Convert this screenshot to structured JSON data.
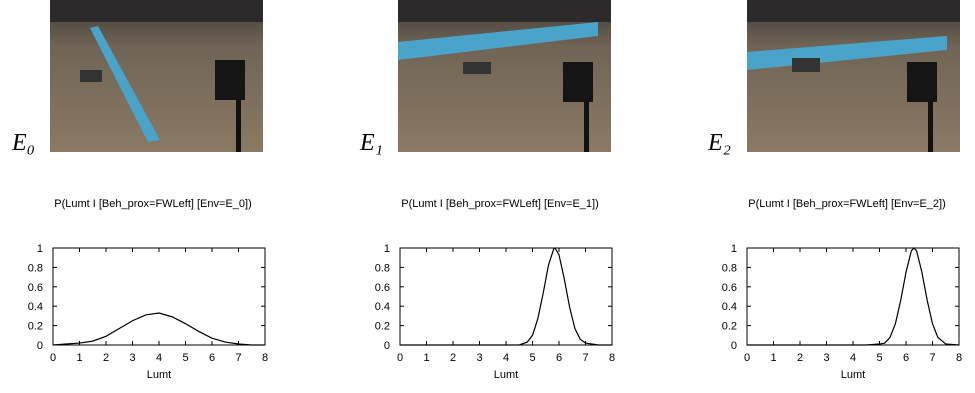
{
  "chart_data": [
    {
      "type": "line",
      "image_label": "E₀",
      "title": "P(Lumt I [Beh_prox=FWLeft] [Env=E_0])",
      "xlabel": "Lumt",
      "x": [
        0,
        0.5,
        1,
        1.5,
        2,
        2.5,
        3,
        3.5,
        4,
        4.5,
        5,
        5.5,
        6,
        6.5,
        7,
        7.5,
        8
      ],
      "values": [
        0,
        0.01,
        0.02,
        0.04,
        0.09,
        0.17,
        0.25,
        0.31,
        0.33,
        0.29,
        0.22,
        0.14,
        0.07,
        0.03,
        0.01,
        0,
        0
      ],
      "color": "#000000",
      "xlim": [
        0,
        8
      ],
      "ylim": [
        0,
        1
      ],
      "xticks": [
        0,
        1,
        2,
        3,
        4,
        5,
        6,
        7,
        8
      ],
      "yticks": [
        0,
        0.2,
        0.4,
        0.6,
        0.8,
        1
      ]
    },
    {
      "type": "line",
      "image_label": "E₁",
      "title": "P(Lumt I [Beh_prox=FWLeft] [Env=E_1])",
      "xlabel": "Lumt",
      "x": [
        0,
        4,
        4.5,
        4.8,
        5,
        5.2,
        5.4,
        5.6,
        5.8,
        5.85,
        6,
        6.2,
        6.4,
        6.6,
        6.8,
        7,
        7.5,
        8
      ],
      "values": [
        0,
        0,
        0,
        0.03,
        0.1,
        0.27,
        0.53,
        0.82,
        0.99,
        1,
        0.93,
        0.68,
        0.39,
        0.17,
        0.06,
        0.02,
        0,
        0
      ],
      "color": "#000000",
      "xlim": [
        0,
        8
      ],
      "ylim": [
        0,
        1
      ],
      "xticks": [
        0,
        1,
        2,
        3,
        4,
        5,
        6,
        7,
        8
      ],
      "yticks": [
        0,
        0.2,
        0.4,
        0.6,
        0.8,
        1
      ]
    },
    {
      "type": "line",
      "image_label": "E₂",
      "title": "P(Lumt I [Beh_prox=FWLeft] [Env=E_2])",
      "xlabel": "Lumt",
      "x": [
        0,
        4.5,
        5,
        5.2,
        5.4,
        5.6,
        5.8,
        6,
        6.2,
        6.3,
        6.4,
        6.6,
        6.8,
        7,
        7.2,
        7.5,
        8
      ],
      "values": [
        0,
        0,
        0.01,
        0.02,
        0.08,
        0.22,
        0.46,
        0.75,
        0.97,
        1,
        0.97,
        0.75,
        0.46,
        0.22,
        0.08,
        0.01,
        0
      ],
      "color": "#000000",
      "xlim": [
        0,
        8
      ],
      "ylim": [
        0,
        1
      ],
      "xticks": [
        0,
        1,
        2,
        3,
        4,
        5,
        6,
        7,
        8
      ],
      "yticks": [
        0,
        0.2,
        0.4,
        0.6,
        0.8,
        1
      ]
    }
  ]
}
